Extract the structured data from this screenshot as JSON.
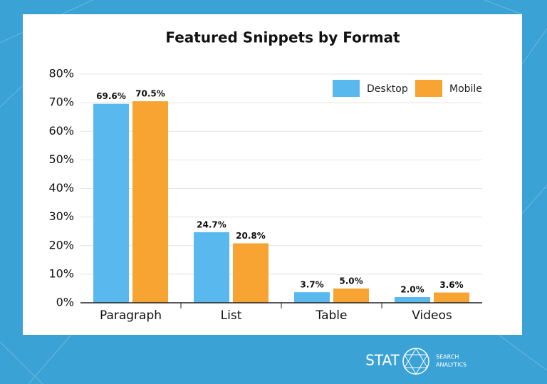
{
  "chart_data": {
    "type": "bar",
    "title": "Featured Snippets by Format",
    "categories": [
      "Paragraph",
      "List",
      "Table",
      "Videos"
    ],
    "series": [
      {
        "name": "Desktop",
        "color": "#59b9ef",
        "values": [
          69.6,
          24.7,
          3.7,
          2.0
        ],
        "value_labels": [
          "69.6%",
          "24.7%",
          "3.7%",
          "2.0%"
        ]
      },
      {
        "name": "Mobile",
        "color": "#f7a432",
        "values": [
          70.5,
          20.8,
          5.0,
          3.6
        ],
        "value_labels": [
          "70.5%",
          "20.8%",
          "5.0%",
          "3.6%"
        ]
      }
    ],
    "ylim": [
      0,
      80
    ],
    "yticks": [
      {
        "value": 0,
        "label": "0%"
      },
      {
        "value": 10,
        "label": "10%"
      },
      {
        "value": 20,
        "label": "20%"
      },
      {
        "value": 30,
        "label": "30%"
      },
      {
        "value": 40,
        "label": "40%"
      },
      {
        "value": 50,
        "label": "50%"
      },
      {
        "value": 60,
        "label": "60%"
      },
      {
        "value": 70,
        "label": "70%"
      },
      {
        "value": 80,
        "label": "80%"
      }
    ],
    "grid": true,
    "legend": "top-right"
  },
  "branding": {
    "name": "STAT",
    "tagline": [
      "SEARCH",
      "ANALYTICS"
    ]
  }
}
